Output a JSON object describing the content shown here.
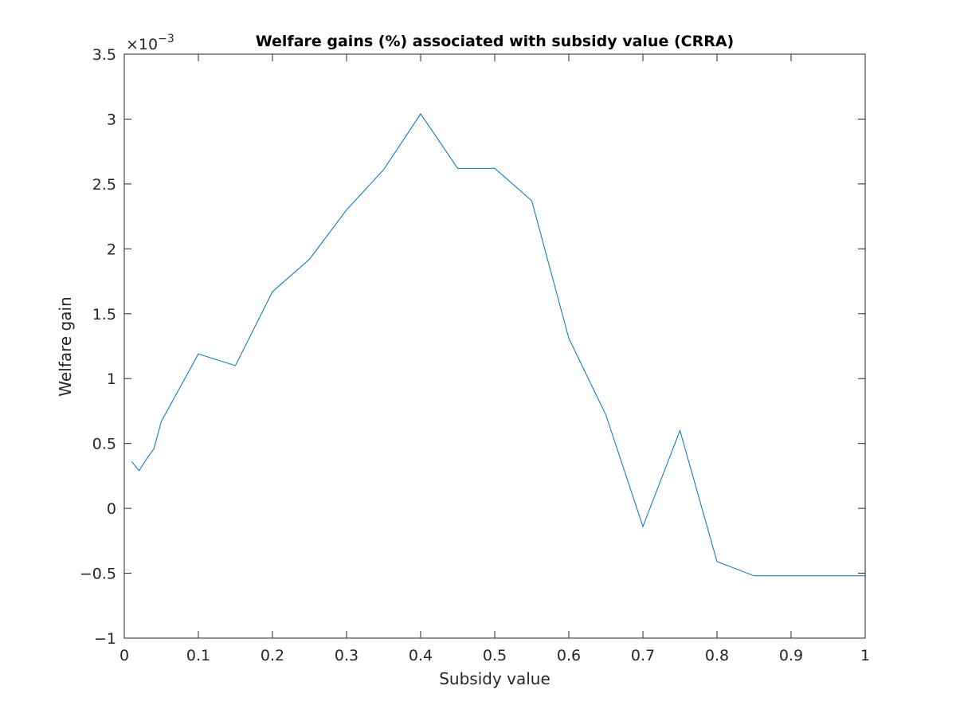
{
  "chart_data": {
    "type": "line",
    "title": "Welfare gains (%) associated with subsidy value (CRRA)",
    "xlabel": "Subsidy value",
    "ylabel": "Welfare gain",
    "y_multiplier": {
      "base": "×10",
      "exponent": "−3"
    },
    "xlim": [
      0,
      1
    ],
    "ylim": [
      -1,
      3.5
    ],
    "x_ticks": [
      0,
      0.1,
      0.2,
      0.3,
      0.4,
      0.5,
      0.6,
      0.7,
      0.8,
      0.9,
      1
    ],
    "x_tick_labels": [
      "0",
      "0.1",
      "0.2",
      "0.3",
      "0.4",
      "0.5",
      "0.6",
      "0.7",
      "0.8",
      "0.9",
      "1"
    ],
    "y_ticks": [
      -1,
      -0.5,
      0,
      0.5,
      1,
      1.5,
      2,
      2.5,
      3,
      3.5
    ],
    "y_tick_labels": [
      "−1",
      "−0.5",
      "0",
      "0.5",
      "1",
      "1.5",
      "2",
      "2.5",
      "3",
      "3.5"
    ],
    "grid": false,
    "series": [
      {
        "color": "#0072BD",
        "x": [
          0.01,
          0.02,
          0.03,
          0.04,
          0.05,
          0.1,
          0.15,
          0.2,
          0.25,
          0.3,
          0.35,
          0.4,
          0.45,
          0.5,
          0.55,
          0.6,
          0.65,
          0.7,
          0.75,
          0.8,
          0.85,
          0.9,
          0.95,
          1.0
        ],
        "y": [
          0.36,
          0.29,
          0.38,
          0.46,
          0.67,
          1.19,
          1.1,
          1.67,
          1.92,
          2.3,
          2.61,
          3.04,
          2.62,
          2.62,
          2.37,
          1.31,
          0.72,
          -0.14,
          0.6,
          -0.41,
          -0.52,
          -0.52,
          -0.52,
          -0.52
        ]
      }
    ]
  }
}
